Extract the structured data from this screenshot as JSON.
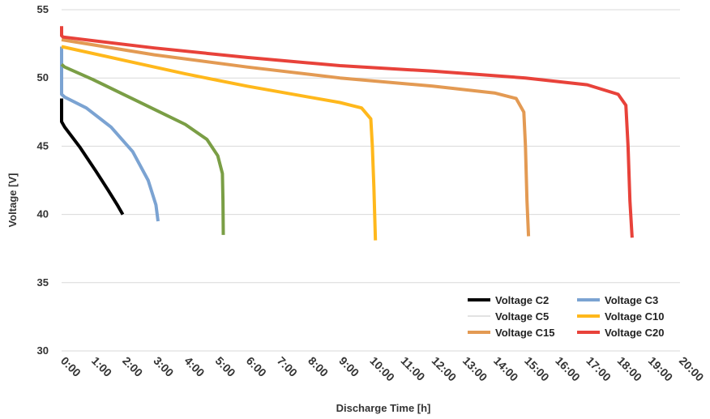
{
  "chart_data": {
    "type": "line",
    "title": "",
    "xlabel": "Discharge Time [h]",
    "ylabel": "Voltage [V]",
    "xlim": [
      0,
      20
    ],
    "ylim": [
      30,
      55
    ],
    "x_ticks": [
      "0:00",
      "1:00",
      "2:00",
      "3:00",
      "4:00",
      "5:00",
      "6:00",
      "7:00",
      "8:00",
      "9:00",
      "10:00",
      "11:00",
      "12:00",
      "13:00",
      "14:00",
      "15:00",
      "16:00",
      "17:00",
      "18:00",
      "19:00",
      "20:00"
    ],
    "y_ticks": [
      30,
      35,
      40,
      45,
      50,
      55
    ],
    "grid": "horizontal",
    "legend_position": "bottom-right",
    "series": [
      {
        "name": "Voltage C2",
        "color": "#000000",
        "x": [
          0,
          0,
          0.1,
          0.6,
          1.1,
          1.5,
          1.8,
          1.98
        ],
        "y": [
          48.5,
          46.8,
          46.4,
          44.9,
          43.2,
          41.8,
          40.7,
          40.0
        ]
      },
      {
        "name": "Voltage C3",
        "color": "#7BA3D2",
        "x": [
          0,
          0,
          0.1,
          0.8,
          1.6,
          2.3,
          2.8,
          3.05,
          3.12
        ],
        "y": [
          52.3,
          48.8,
          48.6,
          47.8,
          46.4,
          44.6,
          42.5,
          40.7,
          39.5
        ]
      },
      {
        "name": "Voltage C5",
        "color": "#7A9E45",
        "x": [
          0,
          0.1,
          1,
          2,
          3,
          4,
          4.7,
          5.05,
          5.2,
          5.22,
          5.23
        ],
        "y": [
          51.0,
          50.8,
          49.9,
          48.8,
          47.7,
          46.6,
          45.5,
          44.3,
          43.0,
          41.0,
          38.5
        ]
      },
      {
        "name": "Voltage C10",
        "color": "#FFB81C",
        "x": [
          0,
          2,
          4,
          6,
          8,
          9,
          9.7,
          10.0,
          10.05,
          10.1,
          10.15
        ],
        "y": [
          52.3,
          51.3,
          50.3,
          49.4,
          48.6,
          48.2,
          47.8,
          47.0,
          45.0,
          42.0,
          38.1
        ]
      },
      {
        "name": "Voltage C15",
        "color": "#E39A53",
        "x": [
          0,
          3,
          6,
          9,
          12,
          14,
          14.7,
          14.95,
          15.0,
          15.05,
          15.1
        ],
        "y": [
          52.8,
          51.7,
          50.8,
          50.0,
          49.4,
          48.9,
          48.5,
          47.5,
          45.0,
          41.0,
          38.4
        ]
      },
      {
        "name": "Voltage C20",
        "color": "#E8423A",
        "x": [
          0,
          0,
          0.05,
          3,
          6,
          9,
          12,
          15,
          17,
          18.0,
          18.25,
          18.32,
          18.38,
          18.45
        ],
        "y": [
          53.8,
          53.1,
          53.0,
          52.2,
          51.5,
          50.9,
          50.5,
          50.0,
          49.5,
          48.8,
          48.0,
          45.0,
          41.0,
          38.3
        ]
      }
    ]
  }
}
